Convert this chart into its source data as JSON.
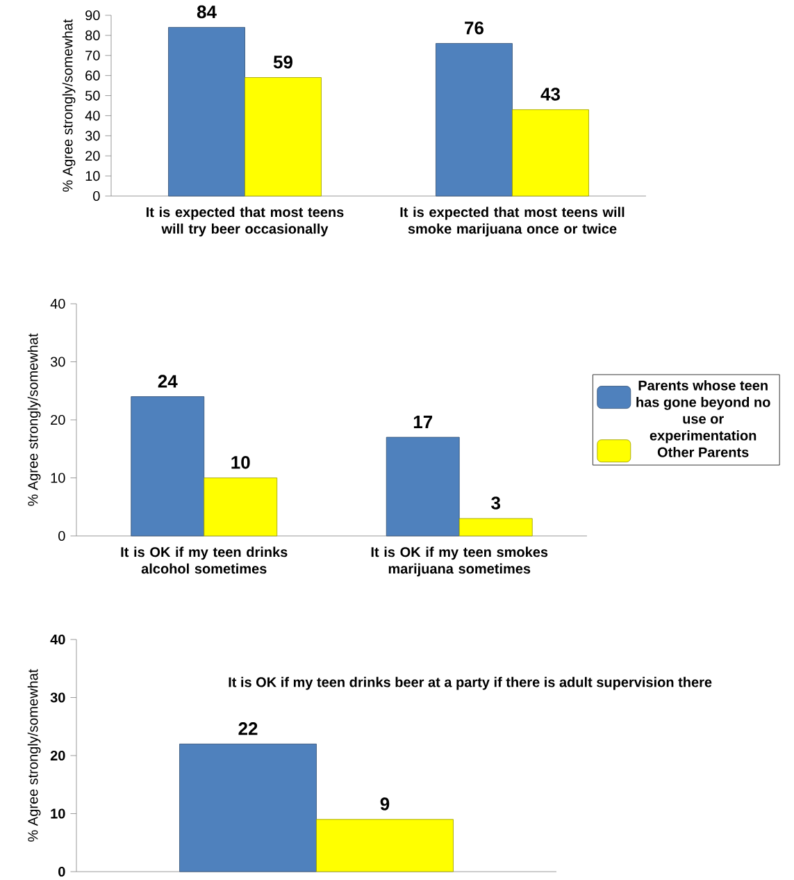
{
  "chart_data": [
    {
      "type": "bar",
      "categories": [
        "It is expected that most teens will try beer occasionally",
        "It is expected that most teens will smoke marijuana once or twice"
      ],
      "ylabel": "% Agree strongly/somewhat",
      "ylim": [
        0,
        90
      ],
      "yticks": [
        0,
        10,
        20,
        30,
        40,
        50,
        60,
        70,
        80,
        90
      ],
      "data_labels": true,
      "series": [
        {
          "color": "#4f81bd",
          "values": [
            84,
            76
          ]
        },
        {
          "color": "#ffff00",
          "values": [
            59,
            43
          ]
        }
      ]
    },
    {
      "type": "bar",
      "categories": [
        "It is OK if my teen drinks alcohol sometimes",
        "It is OK if my teen smokes marijuana sometimes"
      ],
      "ylabel": "% Agree strongly/somewhat",
      "ylim": [
        0,
        40
      ],
      "yticks": [
        0,
        10,
        20,
        30,
        40
      ],
      "data_labels": true,
      "legend": "right",
      "series": [
        {
          "name": "Parents whose teen has gone beyond no use or experimentation",
          "color": "#4f81bd",
          "values": [
            24,
            17
          ]
        },
        {
          "name": "Other Parents",
          "color": "#ffff00",
          "values": [
            10,
            3
          ]
        }
      ]
    },
    {
      "type": "bar",
      "title": "It is OK if my teen drinks beer at a party if there is adult supervision there",
      "categories": [
        null
      ],
      "ylabel": "% Agree strongly/somewhat",
      "ylim": [
        0,
        40
      ],
      "yticks": [
        0,
        10,
        20,
        30,
        40
      ],
      "data_labels": true,
      "series": [
        {
          "color": "#4f81bd",
          "values": [
            22
          ]
        },
        {
          "color": "#ffff00",
          "values": [
            9
          ]
        }
      ]
    }
  ]
}
